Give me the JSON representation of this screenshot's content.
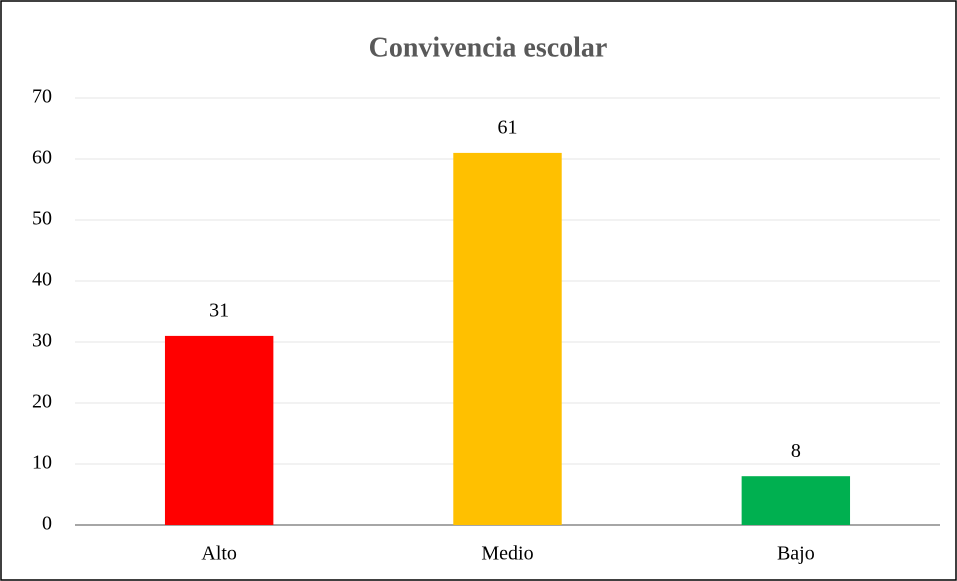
{
  "chart_data": {
    "type": "bar",
    "title": "Convivencia escolar",
    "categories": [
      "Alto",
      "Medio",
      "Bajo"
    ],
    "values": [
      31,
      61,
      8
    ],
    "colors": [
      "#ff0000",
      "#ffc000",
      "#00b050"
    ],
    "ylim": [
      0,
      70
    ],
    "yticks": [
      0,
      10,
      20,
      30,
      40,
      50,
      60,
      70
    ],
    "grid": true
  }
}
